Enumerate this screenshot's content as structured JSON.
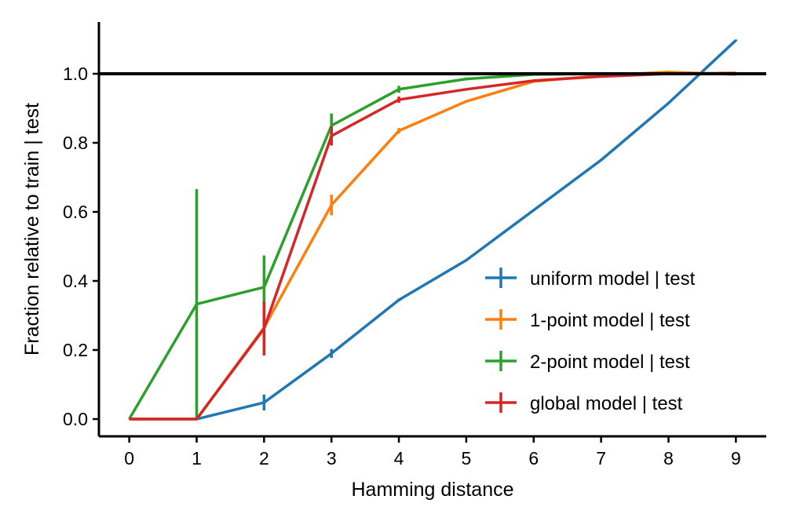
{
  "chart_data": {
    "type": "line",
    "xlabel": "Hamming distance",
    "ylabel": "Fraction relative to train | test",
    "xlim": [
      -0.45,
      9.45
    ],
    "ylim": [
      -0.05,
      1.15
    ],
    "x": [
      0,
      1,
      2,
      3,
      4,
      5,
      6,
      7,
      8,
      9
    ],
    "xticks": [
      "0",
      "1",
      "2",
      "3",
      "4",
      "5",
      "6",
      "7",
      "8",
      "9"
    ],
    "yticks": [
      {
        "value": 0.0,
        "label": "0.0"
      },
      {
        "value": 0.2,
        "label": "0.2"
      },
      {
        "value": 0.4,
        "label": "0.4"
      },
      {
        "value": 0.6,
        "label": "0.6"
      },
      {
        "value": 0.8,
        "label": "0.8"
      },
      {
        "value": 1.0,
        "label": "1.0"
      }
    ],
    "reference_line": {
      "y": 1.0,
      "color": "#000000"
    },
    "grid": false,
    "legend_position": "lower right",
    "series": [
      {
        "name": "uniform model | test",
        "color": "#1f77b4",
        "values": [
          0.0,
          0.0,
          0.048,
          0.19,
          0.345,
          0.46,
          0.605,
          0.75,
          0.915,
          1.097
        ],
        "errors": [
          0.0,
          0.0,
          0.023,
          0.013,
          0.004,
          0.002,
          0.002,
          0.002,
          0.002,
          0.002
        ]
      },
      {
        "name": "1-point model | test",
        "color": "#ff7f0e",
        "values": [
          0.0,
          0.0,
          0.265,
          0.62,
          0.835,
          0.92,
          0.978,
          0.995,
          1.005,
          0.998
        ],
        "errors": [
          0.0,
          0.0,
          0.07,
          0.03,
          0.008,
          0.003,
          0.002,
          0.001,
          0.001,
          0.002
        ]
      },
      {
        "name": "2-point model | test",
        "color": "#2ca02c",
        "values": [
          0.0,
          0.333,
          0.382,
          0.85,
          0.955,
          0.985,
          0.998,
          1.0,
          1.0,
          1.0
        ],
        "errors": [
          0.0,
          0.333,
          0.092,
          0.035,
          0.01,
          0.004,
          0.002,
          0.001,
          0.001,
          0.002
        ]
      },
      {
        "name": "global model | test",
        "color": "#d62728",
        "values": [
          0.0,
          0.0,
          0.262,
          0.82,
          0.925,
          0.955,
          0.98,
          0.992,
          1.0,
          1.002
        ],
        "errors": [
          0.0,
          0.0,
          0.078,
          0.028,
          0.009,
          0.003,
          0.002,
          0.001,
          0.001,
          0.002
        ]
      }
    ]
  }
}
